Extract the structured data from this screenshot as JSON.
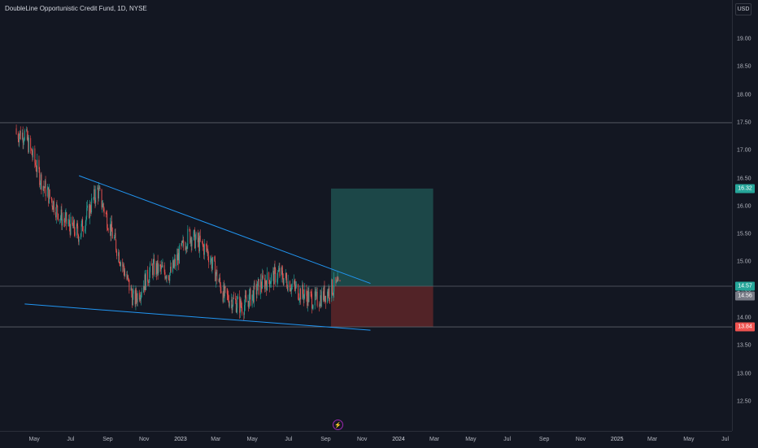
{
  "title": "DoubleLine Opportunistic Credit Fund, 1D, NYSE",
  "currency": "USD",
  "colors": {
    "background": "#131722",
    "up": "#26a69a",
    "down": "#ef5350",
    "trendline": "#2196f3",
    "profit_zone": "#1e4c4c",
    "loss_zone": "#5a2528"
  },
  "price_axis": {
    "ticks": [
      "19.00",
      "18.50",
      "18.00",
      "17.50",
      "17.00",
      "16.50",
      "16.00",
      "15.50",
      "15.00",
      "14.50",
      "14.00",
      "13.50",
      "13.00",
      "12.50"
    ],
    "badges": [
      {
        "label": "16.32",
        "color": "#26a69a"
      },
      {
        "label": "14.57",
        "color": "#26a69a"
      },
      {
        "label": "14.56",
        "color": "#787b86"
      },
      {
        "label": "13.84",
        "color": "#ef5350"
      }
    ]
  },
  "time_axis": {
    "ticks": [
      "May",
      "Jul",
      "Sep",
      "Nov",
      "2023",
      "Mar",
      "May",
      "Jul",
      "Sep",
      "Nov",
      "2024",
      "Mar",
      "May",
      "Jul",
      "Sep",
      "Nov",
      "2025",
      "Mar",
      "May",
      "Jul"
    ]
  },
  "chart_data": {
    "type": "candlestick",
    "symbol": "DoubleLine Opportunistic Credit Fund",
    "interval": "1D",
    "exchange": "NYSE",
    "approximate_closes": [
      {
        "date": "2022-04",
        "close": 17.3
      },
      {
        "date": "2022-05",
        "close": 16.4
      },
      {
        "date": "2022-06",
        "close": 15.8
      },
      {
        "date": "2022-07",
        "close": 15.5
      },
      {
        "date": "2022-08",
        "close": 16.3
      },
      {
        "date": "2022-09",
        "close": 15.3
      },
      {
        "date": "2022-10",
        "close": 14.3
      },
      {
        "date": "2022-11",
        "close": 14.9
      },
      {
        "date": "2022-12",
        "close": 14.8
      },
      {
        "date": "2023-01",
        "close": 15.5
      },
      {
        "date": "2023-02",
        "close": 15.2
      },
      {
        "date": "2023-03",
        "close": 14.4
      },
      {
        "date": "2023-04",
        "close": 14.2
      },
      {
        "date": "2023-05",
        "close": 14.6
      },
      {
        "date": "2023-06",
        "close": 14.8
      },
      {
        "date": "2023-07",
        "close": 14.5
      },
      {
        "date": "2023-08",
        "close": 14.3
      },
      {
        "date": "2023-09",
        "close": 14.56
      }
    ],
    "last_price": 14.56,
    "long_position": {
      "target": 16.32,
      "entry": 14.57,
      "stop": 13.84
    },
    "horizontal_level": 17.5,
    "trendlines": [
      {
        "from": [
          "2022-07",
          "16.55"
        ],
        "to": [
          "2023-11",
          "14.62"
        ]
      },
      {
        "from": [
          "2022-04",
          "14.25"
        ],
        "to": [
          "2023-11",
          "13.78"
        ]
      }
    ],
    "ylim": [
      12.4,
      19.3
    ]
  }
}
